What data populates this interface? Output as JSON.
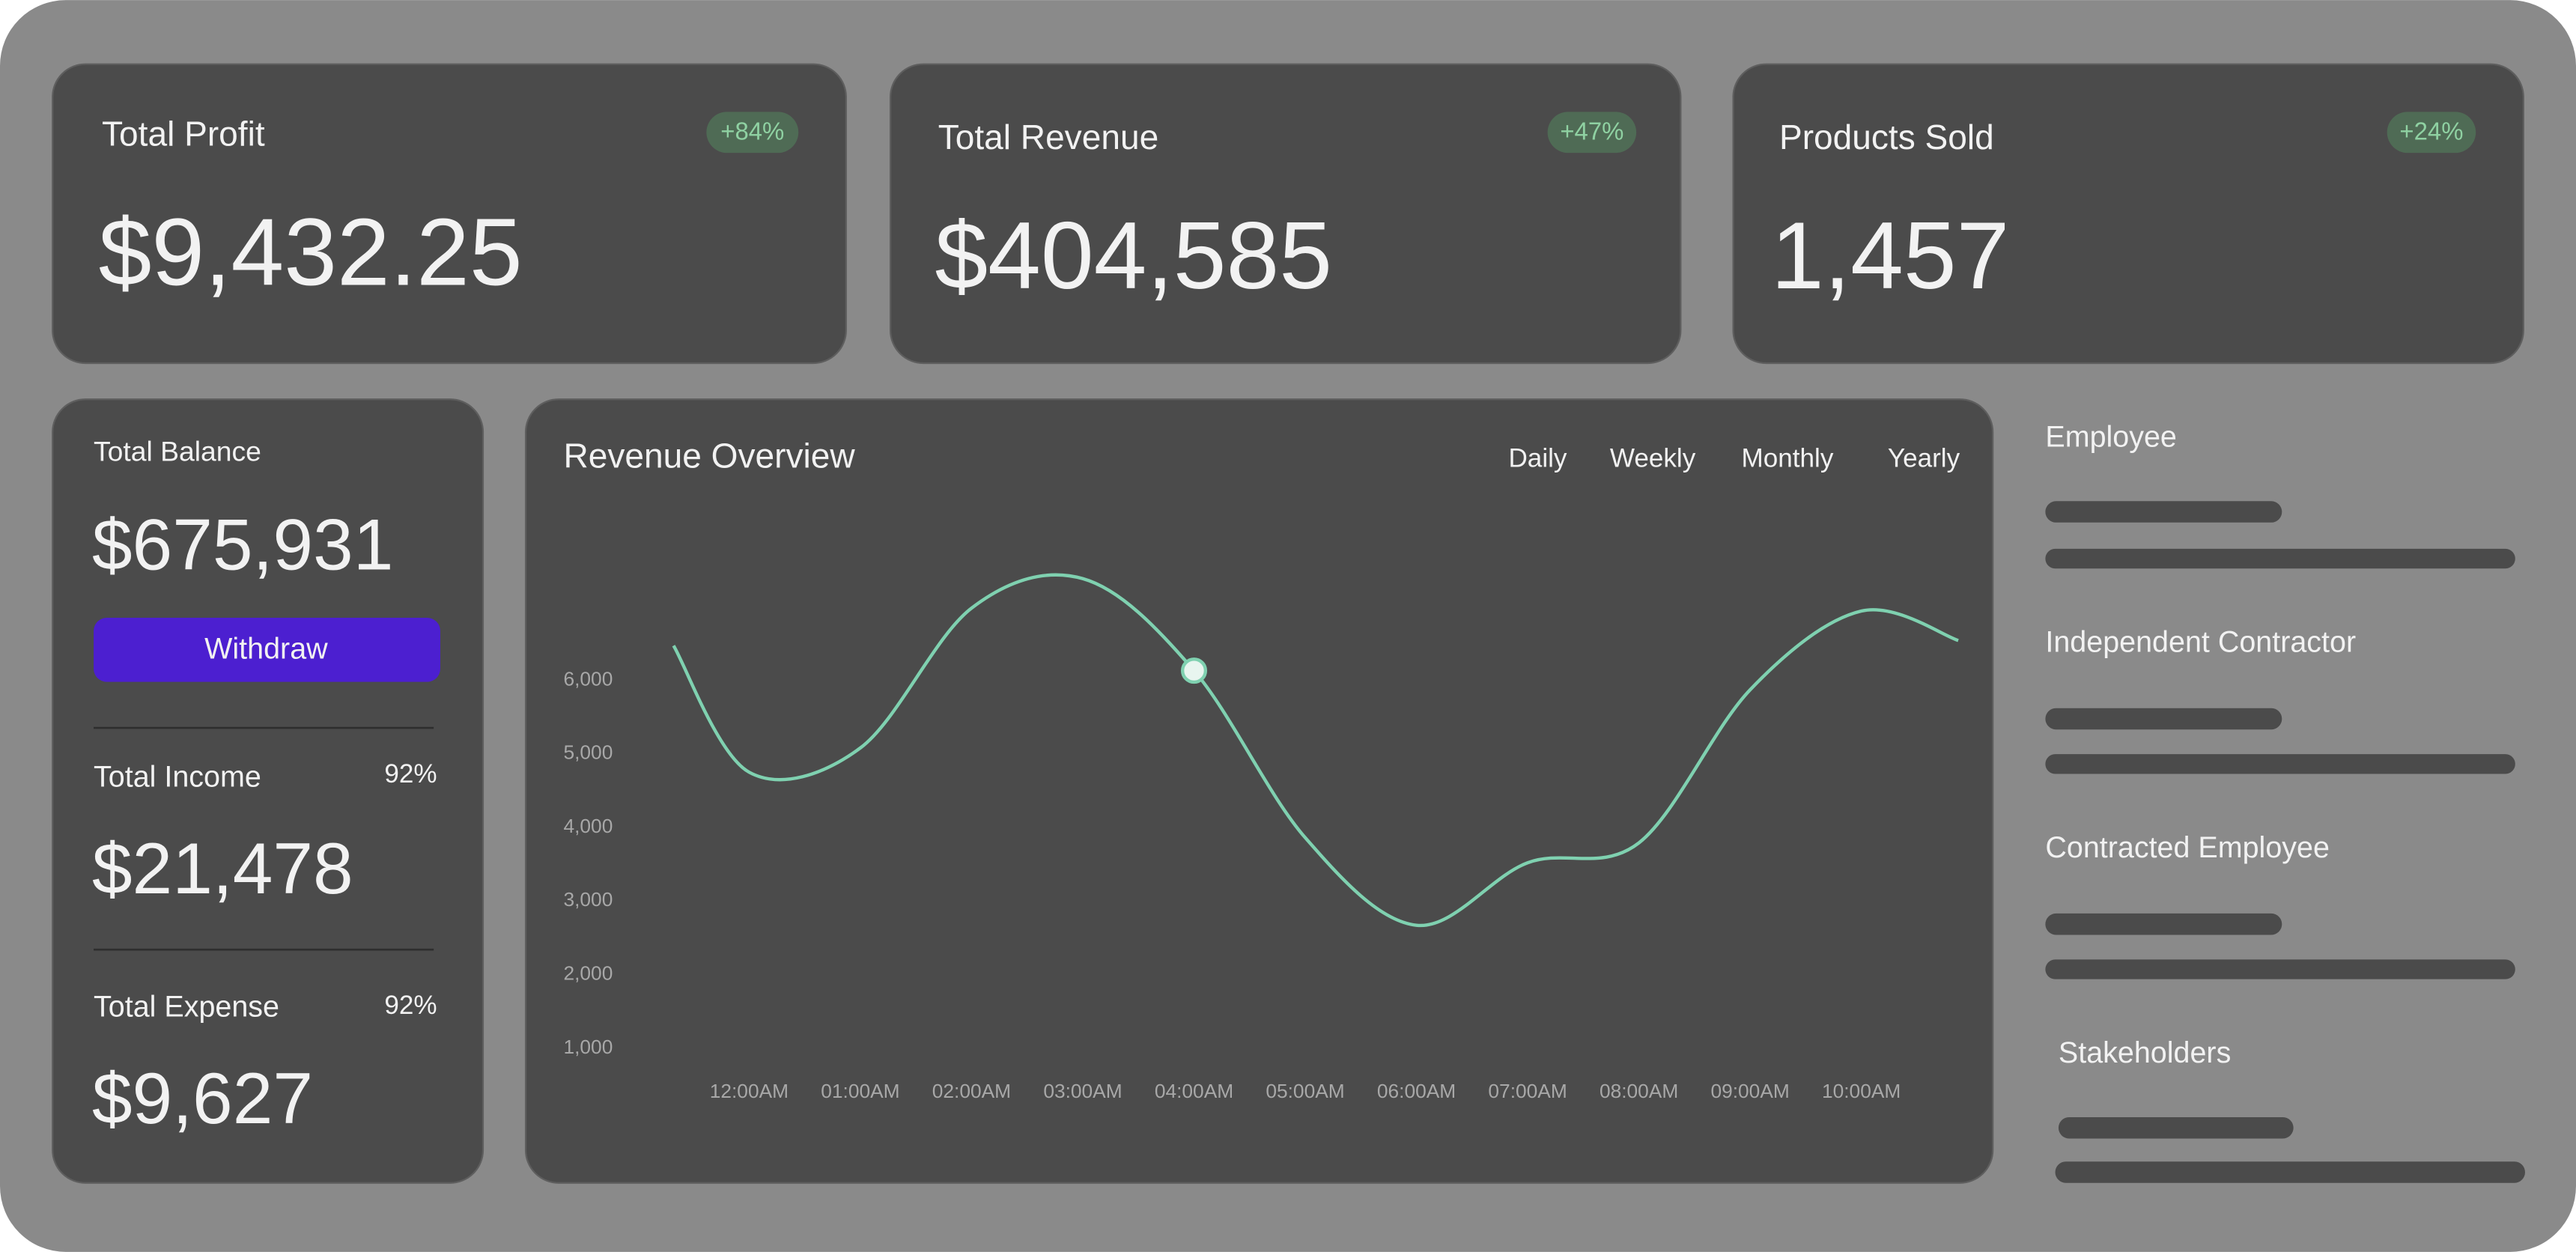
{
  "stats": [
    {
      "title": "Total Profit",
      "change": "+84%",
      "value": "$9,432.25"
    },
    {
      "title": "Total Revenue",
      "change": "+47%",
      "value": "$404,585"
    },
    {
      "title": "Products Sold",
      "change": "+24%",
      "value": "1,457"
    }
  ],
  "balance": {
    "title": "Total Balance",
    "value": "$675,931",
    "button": "Withdraw",
    "income": {
      "title": "Total Income",
      "percent": "92%",
      "value": "$21,478"
    },
    "expense": {
      "title": "Total Expense",
      "percent": "92%",
      "value": "$9,627"
    }
  },
  "chart_data": {
    "type": "line",
    "title": "Revenue Overview",
    "tabs": [
      "Daily",
      "Weekly",
      "Monthly",
      "Yearly"
    ],
    "categories": [
      null,
      "12:00AM",
      "01:00AM",
      "02:00AM",
      "03:00AM",
      "04:00AM",
      "05:00AM",
      "06:00AM",
      "07:00AM",
      "08:00AM",
      "09:00AM",
      "10:00AM",
      null
    ],
    "values": [
      6470,
      4750,
      5080,
      6980,
      7380,
      6130,
      3860,
      2670,
      3520,
      3790,
      5870,
      6940,
      6540
    ],
    "color": "#7fd1b0",
    "ylim": [
      1000,
      8000
    ],
    "yticks": [
      {
        "value": 1000,
        "label": "1,000"
      },
      {
        "value": 2000,
        "label": "2,000"
      },
      {
        "value": 3000,
        "label": "3,000"
      },
      {
        "value": 4000,
        "label": "4,000"
      },
      {
        "value": 5000,
        "label": "5,000"
      },
      {
        "value": 6000,
        "label": "6,000"
      }
    ],
    "grid": false
  },
  "people": [
    "Employee",
    "Independent Contractor",
    "Contracted Employee",
    "Stakeholders"
  ]
}
